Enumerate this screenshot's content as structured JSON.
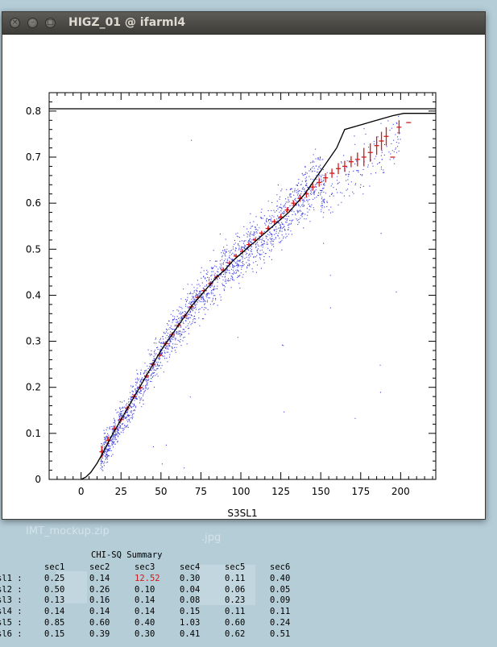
{
  "window": {
    "title": "HIGZ_01 @ ifarml4",
    "buttons": [
      "close",
      "minimize",
      "maximize"
    ]
  },
  "desktop": {
    "visible_labels": [
      "IMT_mockup.zip",
      ".jpg"
    ]
  },
  "chart_data": {
    "type": "scatter",
    "xlabel": "S3SL1",
    "ylabel": "",
    "title": "",
    "xlim": [
      -20,
      222
    ],
    "ylim": [
      0,
      0.84
    ],
    "x_ticks": [
      "0",
      "25",
      "50",
      "75",
      "100",
      "125",
      "150",
      "175",
      "200"
    ],
    "y_ticks": [
      "0",
      "0.1",
      "0.2",
      "0.3",
      "0.4",
      "0.5",
      "0.6",
      "0.7",
      "0.8"
    ],
    "hline": 0.805,
    "fit_curve": [
      [
        0,
        0
      ],
      [
        3,
        0.005
      ],
      [
        6,
        0.015
      ],
      [
        10,
        0.035
      ],
      [
        14,
        0.06
      ],
      [
        20,
        0.1
      ],
      [
        25,
        0.13
      ],
      [
        30,
        0.16
      ],
      [
        35,
        0.19
      ],
      [
        40,
        0.22
      ],
      [
        45,
        0.25
      ],
      [
        50,
        0.28
      ],
      [
        55,
        0.305
      ],
      [
        60,
        0.33
      ],
      [
        65,
        0.355
      ],
      [
        70,
        0.38
      ],
      [
        75,
        0.4
      ],
      [
        80,
        0.42
      ],
      [
        85,
        0.44
      ],
      [
        90,
        0.455
      ],
      [
        95,
        0.475
      ],
      [
        100,
        0.49
      ],
      [
        105,
        0.505
      ],
      [
        110,
        0.52
      ],
      [
        115,
        0.535
      ],
      [
        120,
        0.55
      ],
      [
        125,
        0.565
      ],
      [
        130,
        0.58
      ],
      [
        135,
        0.6
      ],
      [
        140,
        0.62
      ],
      [
        145,
        0.645
      ],
      [
        150,
        0.67
      ],
      [
        155,
        0.695
      ],
      [
        160,
        0.72
      ],
      [
        165,
        0.76
      ],
      [
        175,
        0.77
      ],
      [
        185,
        0.78
      ],
      [
        195,
        0.79
      ],
      [
        202,
        0.795
      ],
      [
        210,
        0.795
      ],
      [
        222,
        0.795
      ]
    ],
    "profile_points": [
      {
        "x": 13,
        "y": 0.06,
        "ey": 0.012
      },
      {
        "x": 17,
        "y": 0.085,
        "ey": 0.008
      },
      {
        "x": 21,
        "y": 0.11,
        "ey": 0.006
      },
      {
        "x": 25,
        "y": 0.13,
        "ey": 0.005
      },
      {
        "x": 29,
        "y": 0.155,
        "ey": 0.005
      },
      {
        "x": 33,
        "y": 0.18,
        "ey": 0.005
      },
      {
        "x": 37,
        "y": 0.2,
        "ey": 0.005
      },
      {
        "x": 41,
        "y": 0.225,
        "ey": 0.005
      },
      {
        "x": 45,
        "y": 0.25,
        "ey": 0.005
      },
      {
        "x": 49,
        "y": 0.27,
        "ey": 0.005
      },
      {
        "x": 53,
        "y": 0.295,
        "ey": 0.005
      },
      {
        "x": 57,
        "y": 0.315,
        "ey": 0.005
      },
      {
        "x": 61,
        "y": 0.335,
        "ey": 0.005
      },
      {
        "x": 65,
        "y": 0.355,
        "ey": 0.005
      },
      {
        "x": 69,
        "y": 0.375,
        "ey": 0.005
      },
      {
        "x": 73,
        "y": 0.395,
        "ey": 0.005
      },
      {
        "x": 77,
        "y": 0.41,
        "ey": 0.005
      },
      {
        "x": 81,
        "y": 0.425,
        "ey": 0.005
      },
      {
        "x": 85,
        "y": 0.44,
        "ey": 0.005
      },
      {
        "x": 89,
        "y": 0.455,
        "ey": 0.005
      },
      {
        "x": 93,
        "y": 0.47,
        "ey": 0.005
      },
      {
        "x": 97,
        "y": 0.485,
        "ey": 0.005
      },
      {
        "x": 101,
        "y": 0.495,
        "ey": 0.005
      },
      {
        "x": 105,
        "y": 0.51,
        "ey": 0.005
      },
      {
        "x": 109,
        "y": 0.52,
        "ey": 0.005
      },
      {
        "x": 113,
        "y": 0.535,
        "ey": 0.005
      },
      {
        "x": 117,
        "y": 0.545,
        "ey": 0.005
      },
      {
        "x": 121,
        "y": 0.56,
        "ey": 0.005
      },
      {
        "x": 125,
        "y": 0.57,
        "ey": 0.006
      },
      {
        "x": 129,
        "y": 0.585,
        "ey": 0.006
      },
      {
        "x": 133,
        "y": 0.6,
        "ey": 0.006
      },
      {
        "x": 137,
        "y": 0.61,
        "ey": 0.007
      },
      {
        "x": 141,
        "y": 0.62,
        "ey": 0.008
      },
      {
        "x": 145,
        "y": 0.635,
        "ey": 0.008
      },
      {
        "x": 149,
        "y": 0.645,
        "ey": 0.009
      },
      {
        "x": 153,
        "y": 0.655,
        "ey": 0.01
      },
      {
        "x": 157,
        "y": 0.665,
        "ey": 0.01
      },
      {
        "x": 161,
        "y": 0.675,
        "ey": 0.012
      },
      {
        "x": 165,
        "y": 0.68,
        "ey": 0.012
      },
      {
        "x": 169,
        "y": 0.69,
        "ey": 0.012
      },
      {
        "x": 173,
        "y": 0.695,
        "ey": 0.015
      },
      {
        "x": 177,
        "y": 0.7,
        "ey": 0.02
      },
      {
        "x": 181,
        "y": 0.71,
        "ey": 0.02
      },
      {
        "x": 185,
        "y": 0.725,
        "ey": 0.02
      },
      {
        "x": 188,
        "y": 0.735,
        "ey": 0.02
      },
      {
        "x": 191,
        "y": 0.745,
        "ey": 0.02
      },
      {
        "x": 195,
        "y": 0.7,
        "ey": 0.0
      },
      {
        "x": 199,
        "y": 0.765,
        "ey": 0.015
      },
      {
        "x": 205,
        "y": 0.775,
        "ey": 0.0
      }
    ],
    "colors": {
      "scatter": "#1a1ad9",
      "profile": "#d41a1a",
      "curve": "#000000",
      "axes": "#000000"
    }
  },
  "chi_sq_summary": {
    "title": "CHI-SQ Summary",
    "columns": [
      "sec1",
      "sec2",
      "sec3",
      "sec4",
      "sec5",
      "sec6"
    ],
    "rows": [
      {
        "label": "sl1 :",
        "values": [
          "0.25",
          "0.14",
          "12.52",
          "0.30",
          "0.11",
          "0.40"
        ]
      },
      {
        "label": "sl2 :",
        "values": [
          "0.50",
          "0.26",
          "0.10",
          "0.04",
          "0.06",
          "0.05"
        ]
      },
      {
        "label": "sl3 :",
        "values": [
          "0.13",
          "0.16",
          "0.14",
          "0.08",
          "0.23",
          "0.09"
        ]
      },
      {
        "label": "sl4 :",
        "values": [
          "0.14",
          "0.14",
          "0.14",
          "0.15",
          "0.11",
          "0.11"
        ]
      },
      {
        "label": "sl5 :",
        "values": [
          "0.85",
          "0.60",
          "0.40",
          "1.03",
          "0.60",
          "0.24"
        ]
      },
      {
        "label": "sl6 :",
        "values": [
          "0.15",
          "0.39",
          "0.30",
          "0.41",
          "0.62",
          "0.51"
        ]
      }
    ],
    "highlight": {
      "row": 0,
      "col": 2,
      "color": "#d01818"
    }
  }
}
